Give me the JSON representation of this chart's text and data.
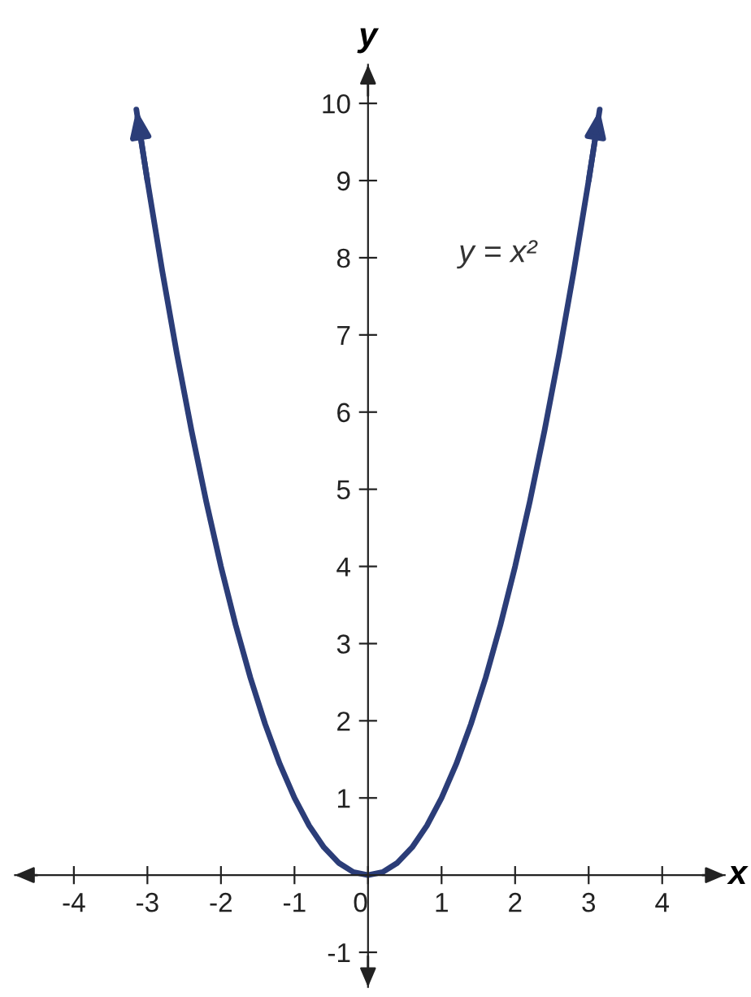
{
  "chart_data": {
    "type": "line",
    "xlabel": "x",
    "ylabel": "y",
    "xlim": [
      -4.8,
      4.85
    ],
    "ylim": [
      -1.45,
      10.5
    ],
    "xticks": [
      -4,
      -3,
      -2,
      -1,
      {
        "value": 0,
        "label": "0"
      },
      1,
      2,
      3,
      4
    ],
    "yticks": [
      -1,
      1,
      2,
      3,
      4,
      5,
      6,
      7,
      8,
      9,
      10
    ],
    "grid": false,
    "legend": false,
    "marker": "none",
    "line_style": "solid",
    "annotations": [
      "y = x²"
    ],
    "series": [
      {
        "color": "#2b3d78",
        "x": [
          -3.15,
          -3,
          -2.8,
          -2.6,
          -2.4,
          -2.2,
          -2,
          -1.8,
          -1.6,
          -1.4,
          -1.2,
          -1,
          -0.8,
          -0.6,
          -0.4,
          -0.2,
          0,
          0.2,
          0.4,
          0.6,
          0.8,
          1,
          1.2,
          1.4,
          1.6,
          1.8,
          2,
          2.2,
          2.4,
          2.6,
          2.8,
          3,
          3.15
        ],
        "values": [
          9.92,
          9,
          7.84,
          6.76,
          5.76,
          4.84,
          4,
          3.24,
          2.56,
          1.96,
          1.44,
          1,
          0.64,
          0.36,
          0.16,
          0.04,
          0,
          0.04,
          0.16,
          0.36,
          0.64,
          1,
          1.44,
          1.96,
          2.56,
          3.24,
          4,
          4.84,
          5.76,
          6.76,
          7.84,
          9,
          9.92
        ]
      }
    ]
  }
}
